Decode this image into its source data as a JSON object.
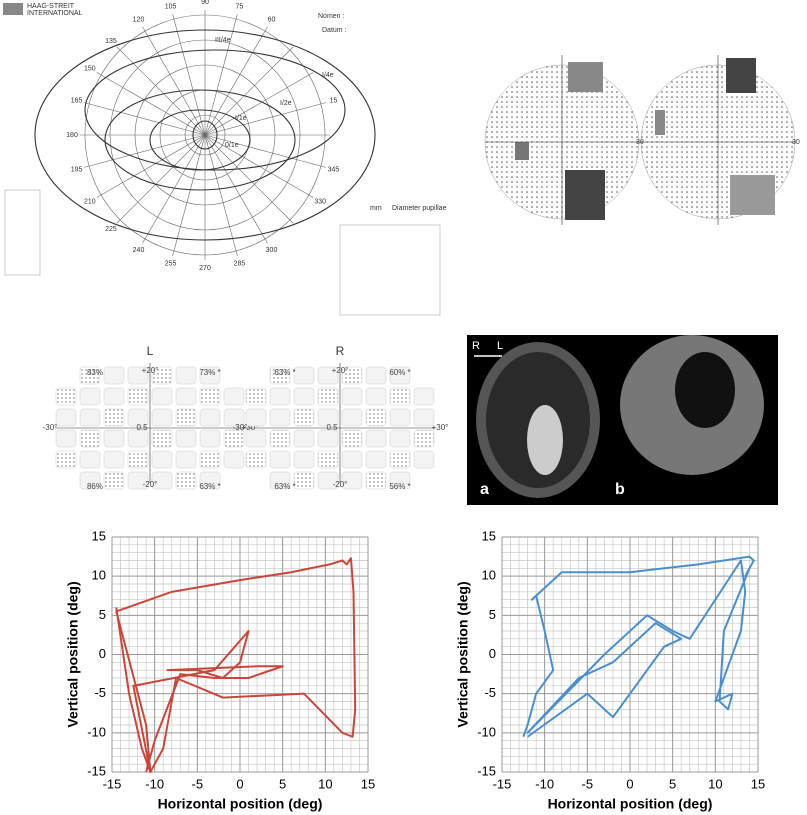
{
  "perimetry": {
    "header": [
      "HAAG-STREIT",
      "INTERNATIONAL"
    ],
    "fields": [
      "Nomen :",
      "Datum :"
    ],
    "angle_labels": [
      15,
      60,
      75,
      90,
      105,
      120,
      135,
      150,
      165,
      180,
      195,
      210,
      225,
      240,
      255,
      270,
      285,
      300,
      330,
      345
    ],
    "isopters": [
      "III/4e",
      "I/4e",
      "I/2e",
      "I/1e",
      "0/1e"
    ],
    "pupil_label": "Diameter pupillae",
    "unit": "mm"
  },
  "automated_fields": {
    "axis_label": [
      "30",
      "30"
    ]
  },
  "octopus": {
    "left": {
      "title": "L",
      "percentages": [
        "83%",
        "73% *",
        "86%",
        "63% *"
      ],
      "axis": [
        "+20°",
        "-20°",
        "-30°",
        "+30°",
        "0.5"
      ]
    },
    "right": {
      "title": "R",
      "percentages": [
        "63% *",
        "60% *",
        "63% *",
        "56% *"
      ],
      "axis": [
        "+20°",
        "-20°",
        "-30°",
        "+30°",
        "0.5"
      ]
    }
  },
  "mri": {
    "panels": [
      "a",
      "b"
    ],
    "orientation": [
      "R",
      "L"
    ]
  },
  "chart_data": [
    {
      "type": "line",
      "xlabel": "Horizontal position (deg)",
      "ylabel": "Vertical position (deg)",
      "xlim": [
        -15,
        15
      ],
      "ylim": [
        -15,
        15
      ],
      "xticks": [
        -15,
        -10,
        -5,
        0,
        5,
        10,
        15
      ],
      "yticks": [
        -15,
        -10,
        -5,
        0,
        5,
        10,
        15
      ],
      "grid": true,
      "series": [
        {
          "color": "#c8473c",
          "x": [
            -14.5,
            -13,
            -11.5,
            -10.5,
            -11,
            -14.5,
            -8,
            0,
            6,
            10.5,
            12,
            12.5,
            13,
            13.3,
            13.5,
            13.2,
            12,
            7.5,
            -2,
            -7.5,
            -9,
            -10.5,
            -12.5,
            -3,
            1,
            0,
            -2,
            -5,
            -8.5,
            2,
            5,
            1,
            -3,
            -7,
            -10,
            -11
          ],
          "values": [
            6,
            -5,
            -12,
            -15,
            -9,
            5.5,
            8,
            9.5,
            10.5,
            11.5,
            12,
            11.5,
            12.3,
            8,
            -7,
            -10.5,
            -10,
            -5,
            -5.5,
            -3,
            -12,
            -15,
            -4,
            -2,
            3,
            -1,
            -3,
            -2,
            -2,
            -1.5,
            -1.5,
            -3,
            -3,
            -2.5,
            -11,
            -15
          ]
        }
      ]
    },
    {
      "type": "line",
      "xlabel": "Horizontal position (deg)",
      "ylabel": "Vertical position (deg)",
      "xlim": [
        -15,
        15
      ],
      "ylim": [
        -15,
        15
      ],
      "xticks": [
        -15,
        -10,
        -5,
        0,
        5,
        10,
        15
      ],
      "yticks": [
        -15,
        -10,
        -5,
        0,
        5,
        10,
        15
      ],
      "grid": true,
      "series": [
        {
          "color": "#4a8fcc",
          "x": [
            -12.5,
            -12,
            -11,
            -9,
            -10,
            -11,
            -10.5,
            -11.5,
            -8,
            0,
            8,
            14,
            14.5,
            13.5,
            14,
            11,
            10.5,
            11.5,
            12,
            10,
            13,
            13.5,
            13,
            7,
            5,
            2,
            -3,
            -12,
            -6,
            -2,
            3,
            6,
            4,
            -2,
            -5,
            -12
          ],
          "values": [
            -10.5,
            -9,
            -5,
            -2,
            3,
            7.5,
            8,
            7,
            10.5,
            10.5,
            11.5,
            12.5,
            12,
            10,
            11,
            3,
            -6,
            -7,
            -5,
            -6,
            3,
            8,
            12,
            2,
            3,
            5,
            0,
            -10,
            -3,
            -1,
            4,
            2,
            1,
            -8,
            -5,
            -10.5
          ]
        }
      ]
    }
  ]
}
